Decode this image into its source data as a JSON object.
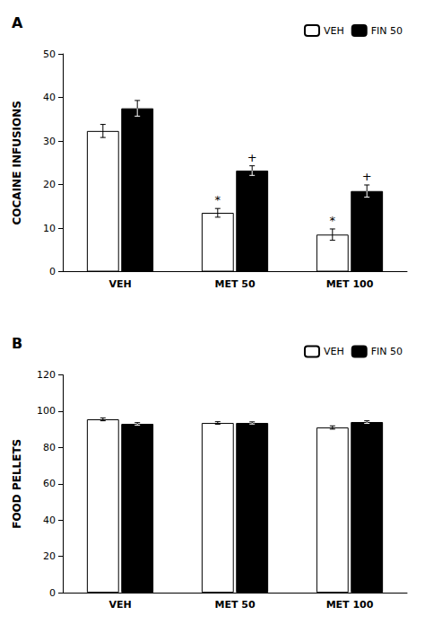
{
  "chart_data": [
    {
      "type": "bar",
      "title": "A",
      "ylabel": "COCAINE INFUSIONS",
      "categories": [
        "VEH",
        "MET 50",
        "MET 100"
      ],
      "series": [
        {
          "name": "VEH",
          "color": "#ffffff",
          "values": [
            32.3,
            13.5,
            8.5
          ],
          "errors": [
            1.5,
            1.0,
            1.3
          ],
          "annotations": [
            null,
            "*",
            "*"
          ]
        },
        {
          "name": "FIN 50",
          "color": "#000000",
          "values": [
            37.5,
            23.2,
            18.5
          ],
          "errors": [
            1.8,
            1.1,
            1.4
          ],
          "annotations": [
            null,
            "+",
            "+"
          ]
        }
      ],
      "ylim": [
        0,
        50
      ],
      "yticks": [
        0,
        10,
        20,
        30,
        40,
        50
      ],
      "grid": false,
      "legend": "upper right"
    },
    {
      "type": "bar",
      "title": "B",
      "ylabel": "FOOD PELLETS",
      "categories": [
        "VEH",
        "MET 50",
        "MET 100"
      ],
      "series": [
        {
          "name": "VEH",
          "color": "#ffffff",
          "values": [
            95.5,
            93.5,
            91.0
          ],
          "errors": [
            0.8,
            0.7,
            0.9
          ]
        },
        {
          "name": "FIN 50",
          "color": "#000000",
          "values": [
            93.0,
            93.5,
            94.0
          ],
          "errors": [
            0.7,
            0.6,
            0.7
          ]
        }
      ],
      "ylim": [
        0,
        120
      ],
      "yticks": [
        0,
        20,
        40,
        60,
        80,
        100,
        120
      ],
      "grid": false,
      "legend": "upper right"
    }
  ]
}
